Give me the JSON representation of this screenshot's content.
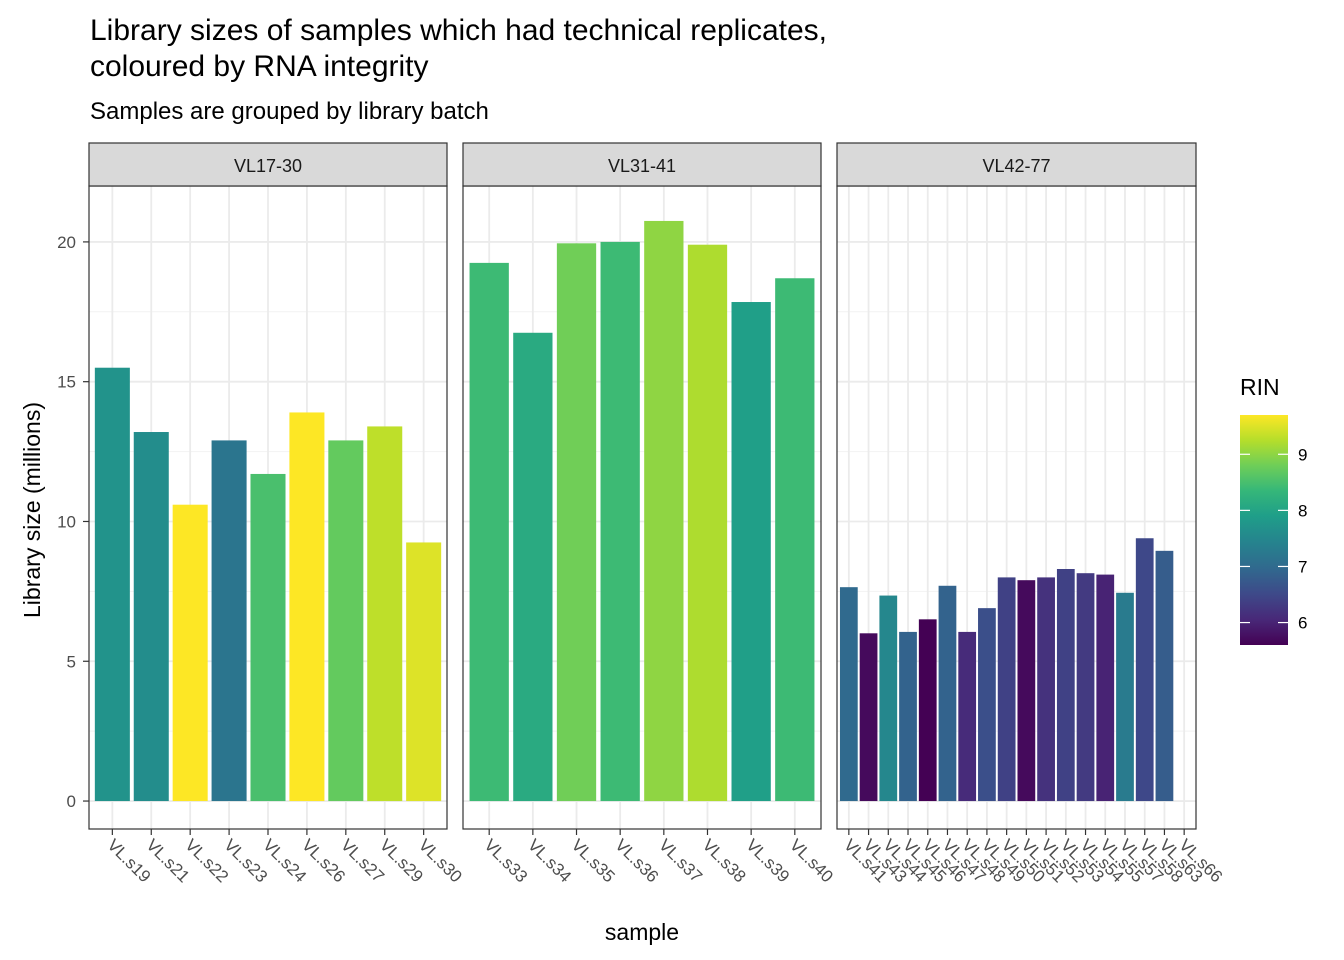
{
  "chart_data": {
    "type": "bar",
    "title_lines": [
      "Library sizes of samples which had technical replicates,",
      "coloured by RNA integrity"
    ],
    "subtitle": "Samples are grouped by library batch",
    "xlabel": "sample",
    "ylabel": "Library size (millions)",
    "ylim": [
      -1,
      22
    ],
    "yticks": [
      0,
      5,
      10,
      15,
      20
    ],
    "grid": true,
    "legend": {
      "title": "RIN",
      "position": "right",
      "range": [
        5.6,
        9.7
      ],
      "ticks": [
        6,
        7,
        8,
        9
      ]
    },
    "panels": [
      {
        "label": "VL17-30",
        "categories": [
          "VL.s19",
          "VL.s21",
          "VL.s22",
          "VL.s23",
          "VL.s24",
          "VL.s26",
          "VL.s27",
          "VL.s29",
          "VL.s30"
        ],
        "values": [
          15.5,
          13.2,
          10.6,
          12.9,
          11.7,
          13.9,
          12.9,
          13.4,
          9.25
        ],
        "rin": [
          7.7,
          7.6,
          9.7,
          7.2,
          8.5,
          9.7,
          8.7,
          9.3,
          9.5
        ]
      },
      {
        "label": "VL31-41",
        "categories": [
          "VL.s33",
          "VL.s34",
          "VL.s35",
          "VL.s36",
          "VL.s37",
          "VL.s38",
          "VL.s39",
          "VL.s40"
        ],
        "values": [
          19.25,
          16.75,
          19.95,
          20.0,
          20.75,
          19.9,
          17.85,
          18.7
        ],
        "rin": [
          8.4,
          8.1,
          8.8,
          8.4,
          9.0,
          9.2,
          7.9,
          8.4
        ]
      },
      {
        "label": "VL42-77",
        "categories": [
          "VL.s41",
          "VL.s43",
          "VL.s44",
          "VL.s45",
          "VL.s46",
          "VL.s47",
          "VL.s48",
          "VL.s49",
          "VL.s50",
          "VL.s51",
          "VL.s52",
          "VL.s53",
          "VL.s54",
          "VL.s55",
          "VL.s57",
          "VL.s58",
          "VL.s63",
          "VL.s66"
        ],
        "values": [
          7.65,
          6.0,
          7.35,
          6.05,
          6.5,
          7.7,
          6.05,
          6.9,
          8.0,
          7.9,
          8.0,
          8.3,
          8.15,
          8.1,
          7.45,
          9.4,
          8.95,
          0
        ],
        "rin": [
          7.0,
          5.7,
          7.5,
          6.9,
          5.6,
          6.9,
          6.1,
          6.6,
          6.4,
          5.7,
          6.2,
          6.4,
          6.3,
          6.0,
          7.3,
          6.5,
          6.8,
          6.8
        ]
      }
    ],
    "palette": [
      "#440154",
      "#482878",
      "#3e4989",
      "#31688e",
      "#26828e",
      "#1f9e89",
      "#35b779",
      "#6ece58",
      "#b5de2b",
      "#fde725"
    ]
  }
}
